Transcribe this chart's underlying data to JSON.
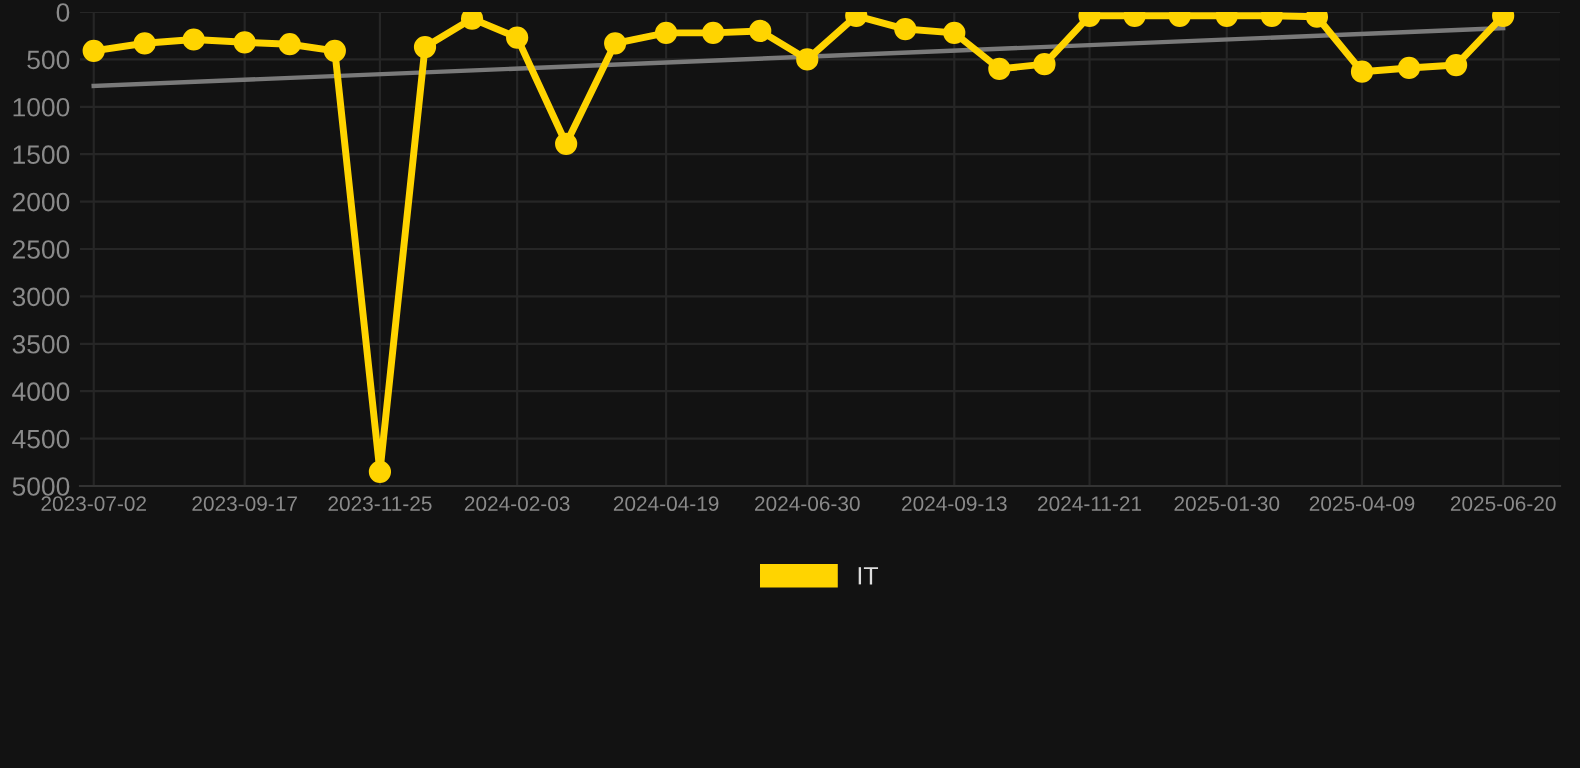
{
  "chart_data": {
    "type": "line",
    "x": [
      "2023-07-02",
      "2023-07-28",
      "2023-08-22",
      "2023-09-17",
      "2023-10-10",
      "2023-11-02",
      "2023-11-25",
      "2023-12-18",
      "2024-01-11",
      "2024-02-03",
      "2024-02-28",
      "2024-03-24",
      "2024-04-19",
      "2024-05-13",
      "2024-06-06",
      "2024-06-30",
      "2024-07-25",
      "2024-08-19",
      "2024-09-13",
      "2024-10-06",
      "2024-10-29",
      "2024-11-21",
      "2024-12-14",
      "2025-01-06",
      "2025-01-30",
      "2025-02-22",
      "2025-03-17",
      "2025-04-09",
      "2025-05-03",
      "2025-05-27",
      "2025-06-20"
    ],
    "series": [
      {
        "name": "IT",
        "color": "#ffd400",
        "values": [
          410,
          330,
          290,
          320,
          340,
          410,
          4850,
          370,
          70,
          270,
          1390,
          330,
          220,
          220,
          200,
          500,
          40,
          180,
          220,
          600,
          550,
          40,
          40,
          40,
          40,
          40,
          50,
          630,
          590,
          560,
          40
        ]
      },
      {
        "type": "line",
        "color": "#7a7a7a",
        "x": [
          "2023-07-02",
          "2025-06-20"
        ],
        "values": [
          780,
          170
        ],
        "marker": "none"
      }
    ],
    "xlim": [
      "2023-06-25",
      "2025-07-19"
    ],
    "ylim": [
      5000,
      0
    ],
    "xticks": [
      "2023-07-02",
      "2023-09-17",
      "2023-11-25",
      "2024-02-03",
      "2024-04-19",
      "2024-06-30",
      "2024-09-13",
      "2024-11-21",
      "2025-01-30",
      "2025-04-09",
      "2025-06-20"
    ],
    "yticks": [
      0,
      500,
      1000,
      1500,
      2000,
      2500,
      3000,
      3500,
      4000,
      4500,
      5000
    ],
    "grid": true,
    "legend": "bottom",
    "marker": "circle",
    "line_style": "solid"
  }
}
